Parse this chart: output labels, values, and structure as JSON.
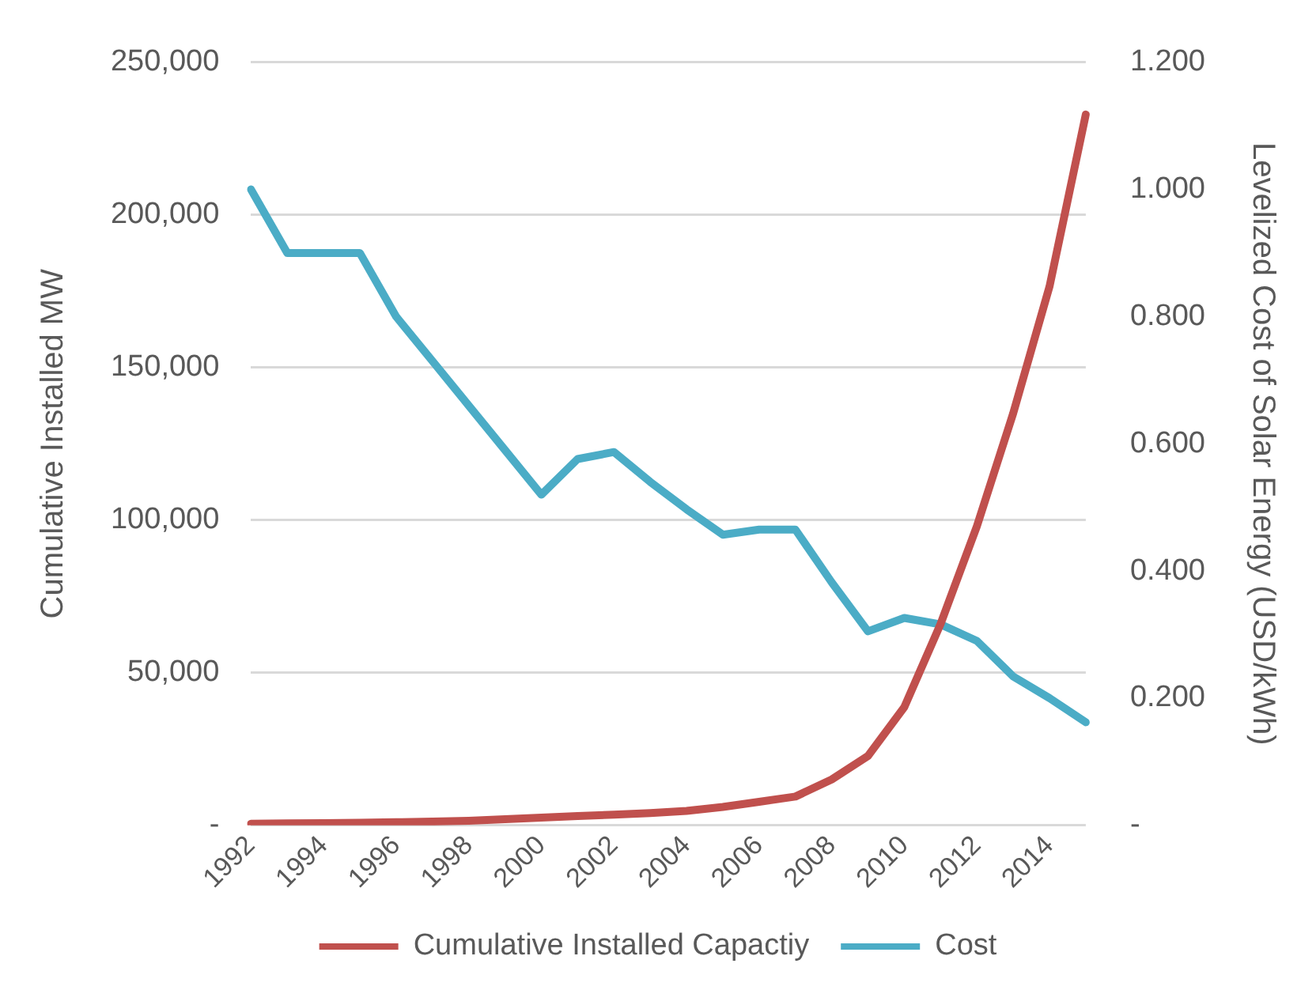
{
  "chart_data": {
    "type": "line",
    "ylabel": "Cumulative Installed MW",
    "y2label": "Levelized Cost of Solar Energy (USD/kWh)",
    "categories": [
      "1992",
      null,
      "1994",
      null,
      "1996",
      null,
      "1998",
      null,
      "2000",
      null,
      "2002",
      null,
      "2004",
      null,
      "2006",
      null,
      "2008",
      null,
      "2010",
      null,
      "2012",
      null,
      "2014",
      null
    ],
    "series": [
      {
        "name": "Cumulative Installed Capactiy",
        "color": "#c0504d",
        "values": [
          500,
          600,
          700,
          800,
          1000,
          1200,
          1500,
          2000,
          2500,
          3000,
          3500,
          4000,
          4700,
          6000,
          7700,
          9400,
          15000,
          22700,
          38700,
          66000,
          98000,
          135000,
          176500,
          232900
        ]
      },
      {
        "name": "Cost",
        "color": "#4bacc6",
        "axis": "y2",
        "values": [
          1.0,
          0.9,
          0.9,
          0.9,
          0.8,
          0.73,
          0.66,
          0.59,
          0.52,
          0.576,
          0.587,
          0.54,
          0.497,
          0.457,
          0.465,
          0.465,
          0.382,
          0.305,
          0.326,
          0.316,
          0.29,
          0.234,
          0.2,
          0.162
        ]
      }
    ],
    "ylim": [
      0,
      250000
    ],
    "yticks": [
      {
        "value": 0,
        "label": "-"
      },
      {
        "value": 50000,
        "label": "50,000"
      },
      {
        "value": 100000,
        "label": "100,000"
      },
      {
        "value": 150000,
        "label": "150,000"
      },
      {
        "value": 200000,
        "label": "200,000"
      },
      {
        "value": 250000,
        "label": "250,000"
      }
    ],
    "y2lim": [
      0,
      1.2
    ],
    "y2ticks": [
      {
        "value": 0,
        "label": "-"
      },
      {
        "value": 0.2,
        "label": "0.200"
      },
      {
        "value": 0.4,
        "label": "0.400"
      },
      {
        "value": 0.6,
        "label": "0.600"
      },
      {
        "value": 0.8,
        "label": "0.800"
      },
      {
        "value": 1.0,
        "label": "1.000"
      },
      {
        "value": 1.2,
        "label": "1.200"
      }
    ],
    "grid": "y",
    "legend": "bottom",
    "marker": "none",
    "line_style": "solid"
  }
}
